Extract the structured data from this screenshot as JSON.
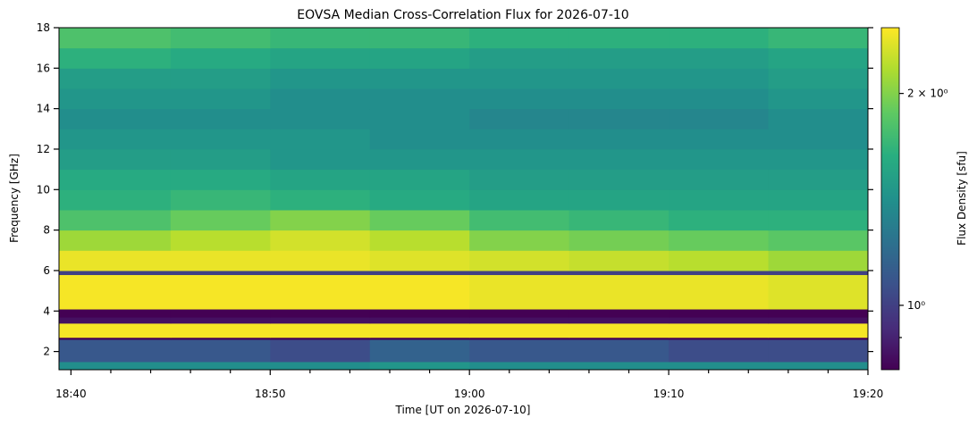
{
  "chart_data": {
    "type": "heatmap",
    "title": "EOVSA Median Cross-Correlation Flux for 2026-07-10",
    "xlabel": "Time [UT on 2026-07-10]",
    "ylabel": "Frequency [GHz]",
    "colorbar_label": "Flux Density [sfu]",
    "colormap": "viridis",
    "log_color": true,
    "xlim": [
      1119.4,
      1160
    ],
    "ylim": [
      1.1,
      18
    ],
    "xticks": [
      {
        "value": 1120,
        "label": "18:40"
      },
      {
        "value": 1130,
        "label": "18:50"
      },
      {
        "value": 1140,
        "label": "19:00"
      },
      {
        "value": 1150,
        "label": "19:10"
      },
      {
        "value": 1160,
        "label": "19:20"
      }
    ],
    "xminorticks": [
      1122,
      1124,
      1126,
      1128,
      1132,
      1134,
      1136,
      1138,
      1142,
      1144,
      1146,
      1148,
      1152,
      1154,
      1156,
      1158
    ],
    "yticks": [
      2,
      4,
      6,
      8,
      10,
      12,
      14,
      16,
      18
    ],
    "clim": [
      0.81,
      2.48
    ],
    "cticks": [
      {
        "value": 1,
        "label": "10⁰"
      },
      {
        "value": 2,
        "label": "2 × 10⁰"
      }
    ],
    "cminorticks": [
      0.9
    ],
    "x_edges": [
      1119.4,
      1125,
      1130,
      1135,
      1140,
      1145,
      1150,
      1155,
      1160
    ],
    "y_edges": [
      1.1,
      1.5,
      2.6,
      2.7,
      3.4,
      3.7,
      4.1,
      5.8,
      6.0,
      7,
      8,
      9,
      10,
      11,
      12,
      13,
      14,
      15,
      16,
      17,
      18
    ],
    "z": [
      [
        1.4,
        1.4,
        1.4,
        1.45,
        1.4,
        1.4,
        1.4,
        1.4
      ],
      [
        1.1,
        1.1,
        1.05,
        1.15,
        1.1,
        1.1,
        1.05,
        1.05
      ],
      [
        0.81,
        0.81,
        0.81,
        0.81,
        0.81,
        0.81,
        0.81,
        0.81
      ],
      [
        2.45,
        2.45,
        2.45,
        2.45,
        2.45,
        2.45,
        2.45,
        2.45
      ],
      [
        0.85,
        0.85,
        0.85,
        0.85,
        0.85,
        0.85,
        0.85,
        0.85
      ],
      [
        0.81,
        0.81,
        0.81,
        0.81,
        0.81,
        0.81,
        0.81,
        0.81
      ],
      [
        2.45,
        2.45,
        2.45,
        2.45,
        2.4,
        2.4,
        2.4,
        2.35
      ],
      [
        1.0,
        1.0,
        1.0,
        1.0,
        1.0,
        1.0,
        1.0,
        1.0
      ],
      [
        2.4,
        2.4,
        2.4,
        2.35,
        2.3,
        2.25,
        2.2,
        2.1
      ],
      [
        2.1,
        2.2,
        2.3,
        2.2,
        2.0,
        1.95,
        1.9,
        1.85
      ],
      [
        1.8,
        1.9,
        2.0,
        1.9,
        1.75,
        1.7,
        1.65,
        1.65
      ],
      [
        1.65,
        1.7,
        1.65,
        1.6,
        1.55,
        1.55,
        1.55,
        1.55
      ],
      [
        1.6,
        1.6,
        1.55,
        1.55,
        1.5,
        1.5,
        1.5,
        1.5
      ],
      [
        1.5,
        1.5,
        1.45,
        1.45,
        1.45,
        1.45,
        1.45,
        1.45
      ],
      [
        1.45,
        1.45,
        1.45,
        1.4,
        1.4,
        1.4,
        1.4,
        1.4
      ],
      [
        1.4,
        1.4,
        1.4,
        1.4,
        1.35,
        1.35,
        1.35,
        1.4
      ],
      [
        1.45,
        1.45,
        1.4,
        1.4,
        1.4,
        1.4,
        1.4,
        1.45
      ],
      [
        1.5,
        1.5,
        1.45,
        1.45,
        1.45,
        1.45,
        1.45,
        1.5
      ],
      [
        1.65,
        1.6,
        1.55,
        1.55,
        1.5,
        1.5,
        1.5,
        1.55
      ],
      [
        1.8,
        1.75,
        1.7,
        1.7,
        1.65,
        1.65,
        1.65,
        1.7
      ]
    ]
  }
}
